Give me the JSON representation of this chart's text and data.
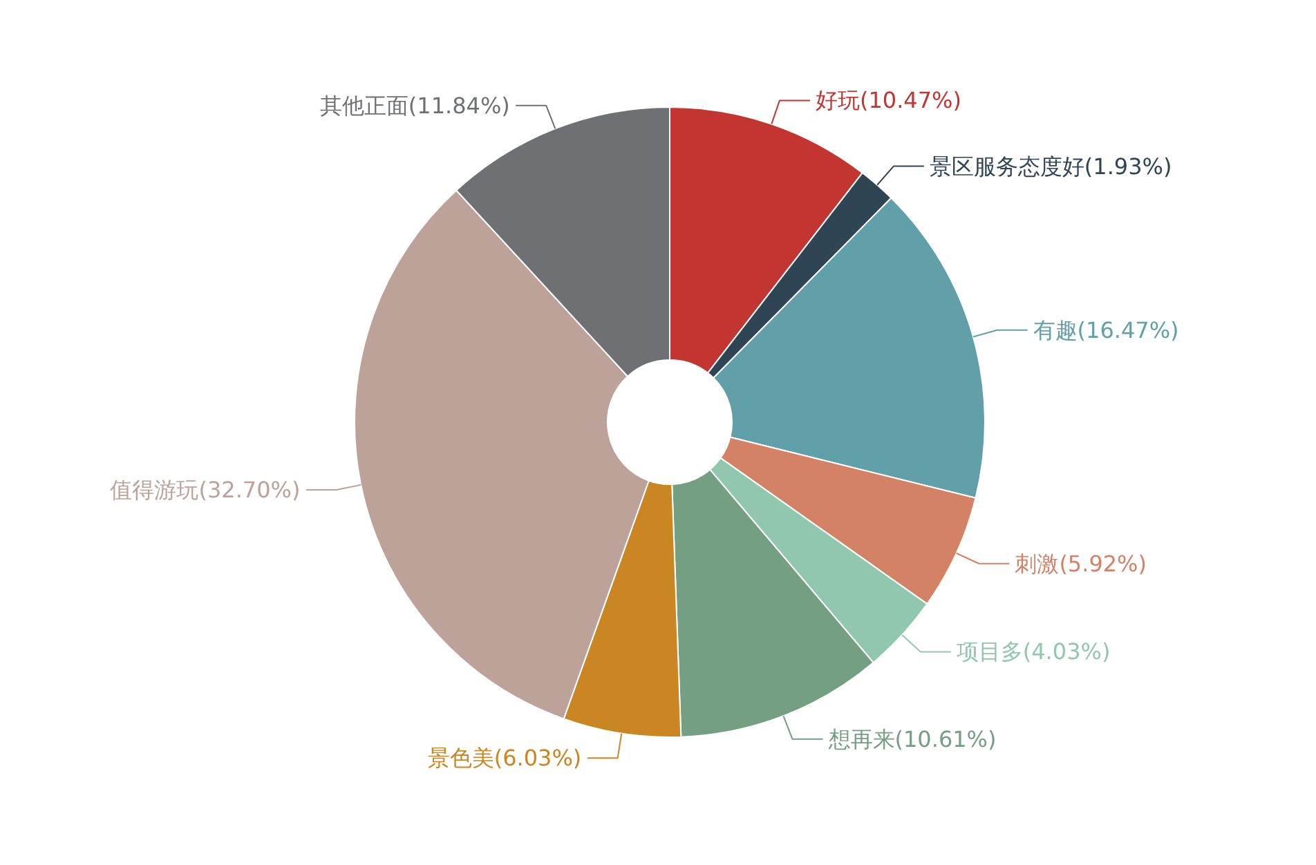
{
  "chart_data": {
    "type": "donut",
    "categories": [
      "好玩",
      "景区服务态度好",
      "有趣",
      "刺激",
      "项目多",
      "想再来",
      "景色美",
      "值得游玩",
      "其他正面"
    ],
    "values": [
      10.47,
      1.93,
      16.47,
      5.92,
      4.03,
      10.61,
      6.03,
      32.7,
      11.84
    ],
    "colors": [
      "#c23531",
      "#2f4554",
      "#61a0a8",
      "#d48265",
      "#91c7ae",
      "#749f83",
      "#ca8622",
      "#bda29a",
      "#6e7074"
    ],
    "value_labels": [
      "(10.47%)",
      "(1.93%)",
      "(16.47%)",
      "(5.92%)",
      "(4.03%)",
      "(10.61%)",
      "(6.03%)",
      "(32.70%)",
      "(11.84%)"
    ]
  }
}
